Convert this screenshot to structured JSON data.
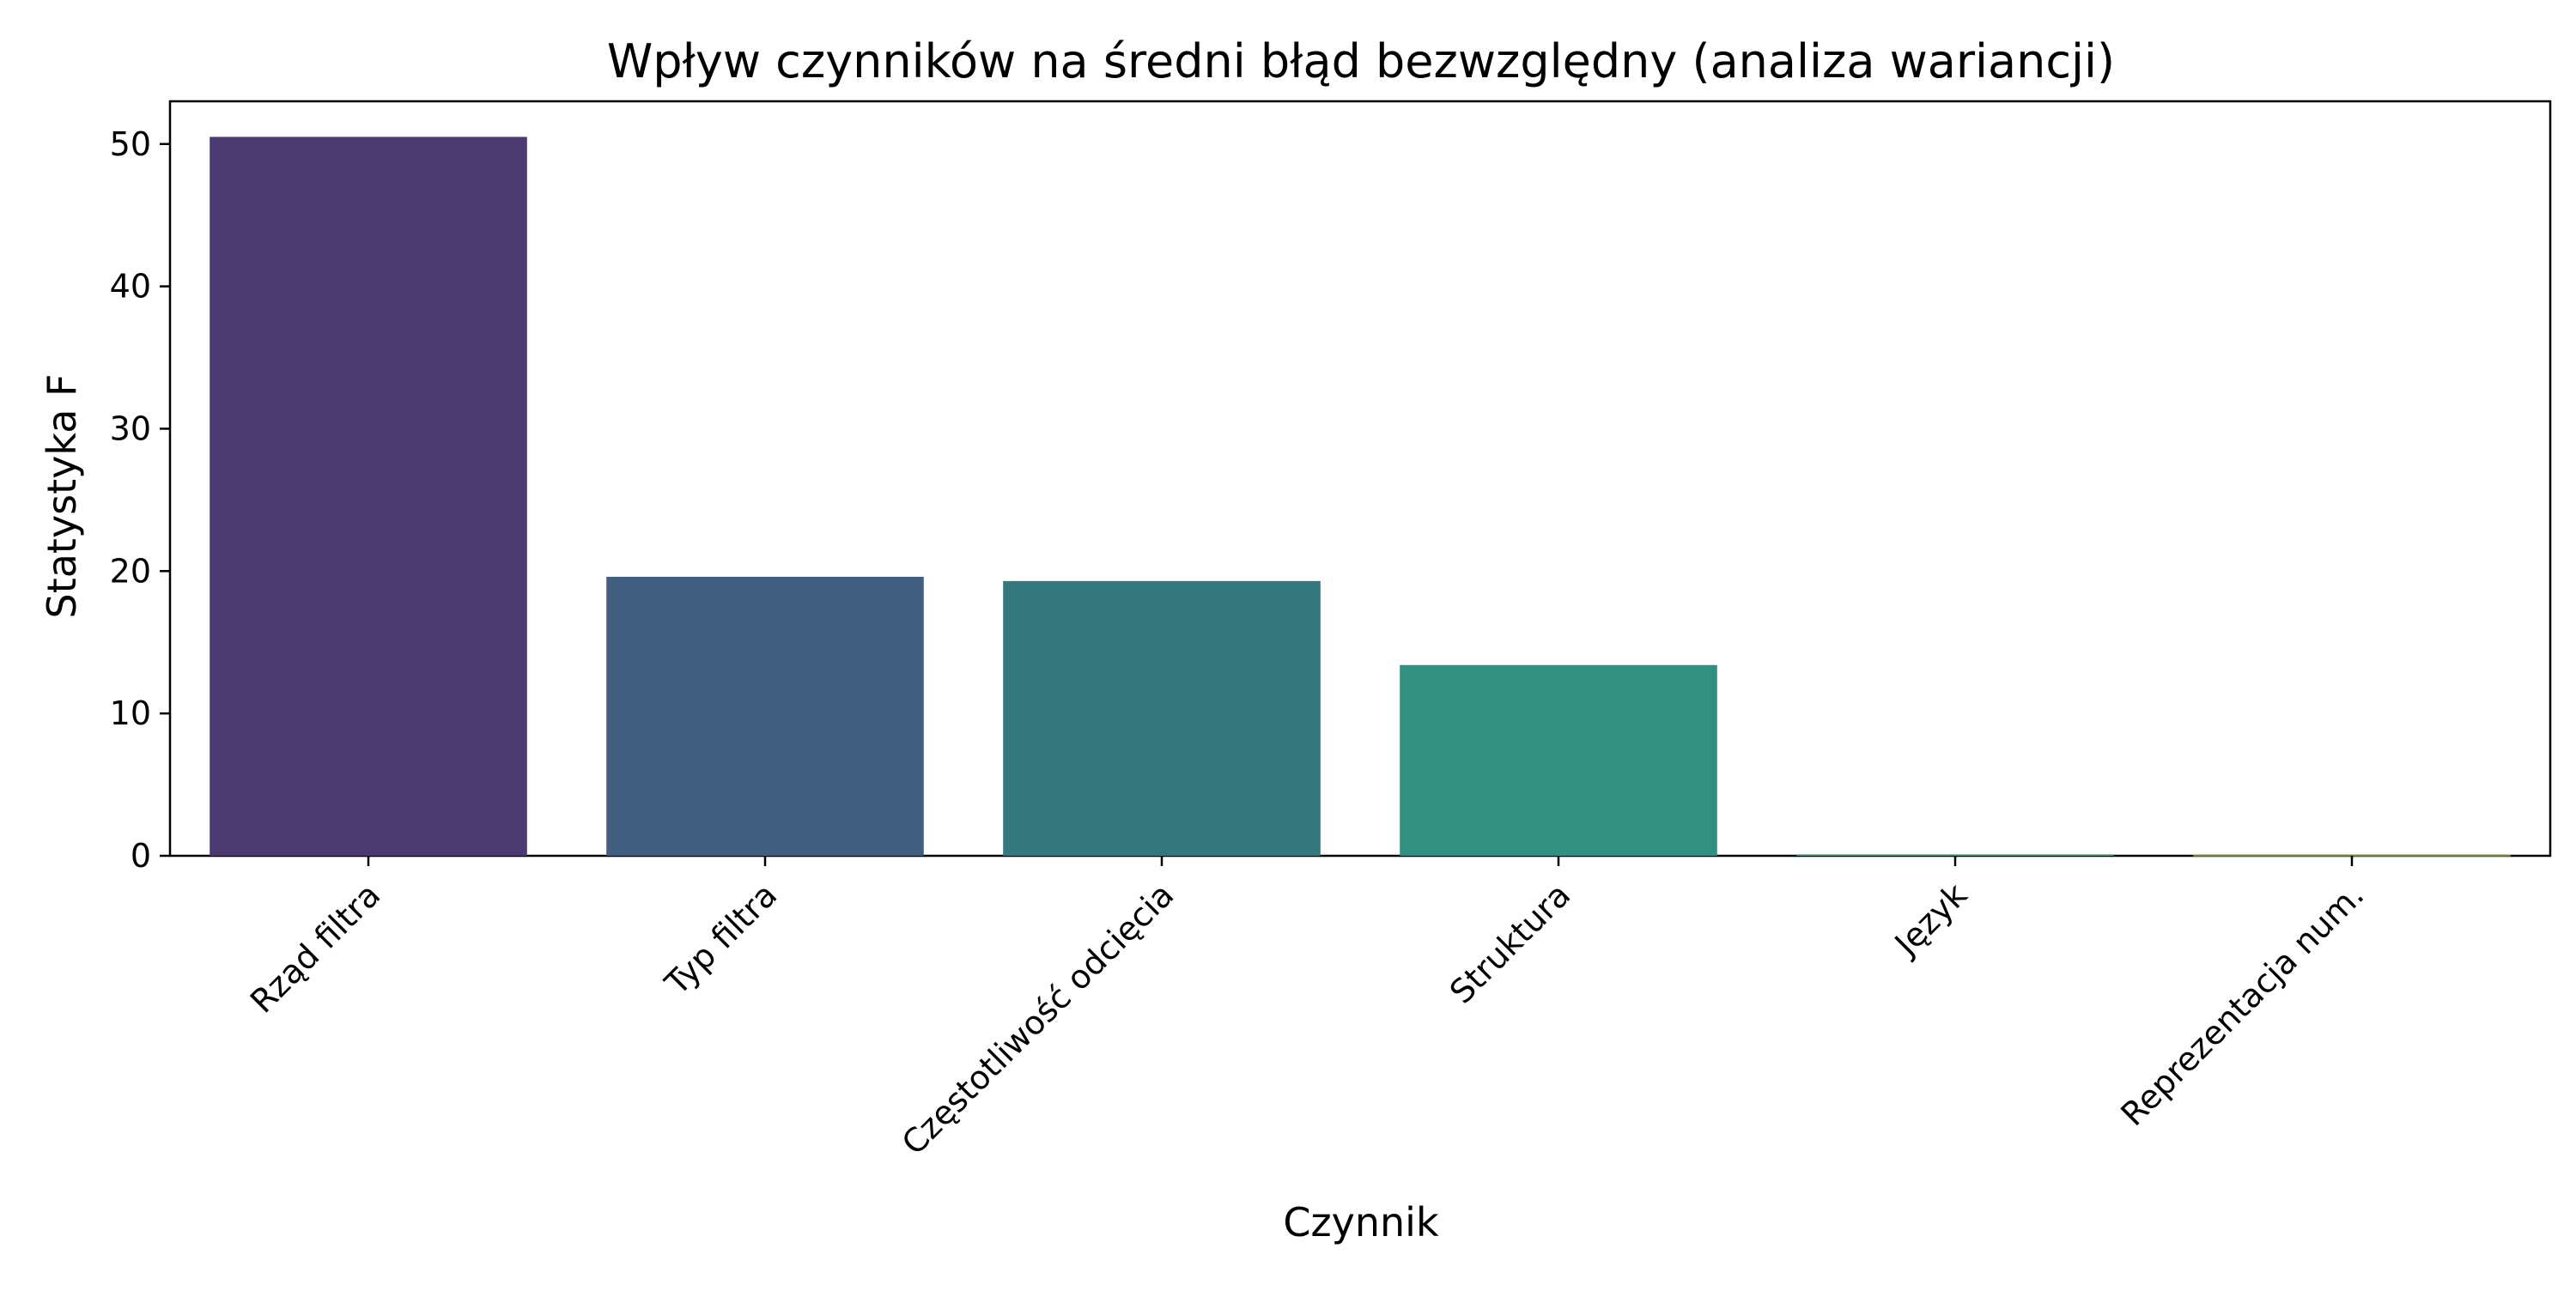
{
  "chart_data": {
    "type": "bar",
    "title": "Wpływ czynników na średni błąd bezwzględny (analiza wariancji)",
    "xlabel": "Czynnik",
    "ylabel": "Statystyka F",
    "categories": [
      "Rząd filtra",
      "Typ filtra",
      "Częstotliwość odcięcia",
      "Struktura",
      "Język",
      "Reprezentacja num."
    ],
    "values": [
      50.5,
      19.6,
      19.3,
      13.4,
      0.1,
      0.05
    ],
    "colors": [
      "#4a3a6f",
      "#415e7f",
      "#34777d",
      "#319080",
      "#3f9878",
      "#85a84d"
    ],
    "ylim": [
      0,
      53
    ],
    "yticks": [
      0,
      10,
      20,
      30,
      40,
      50
    ],
    "grid": false,
    "legend": "none"
  }
}
